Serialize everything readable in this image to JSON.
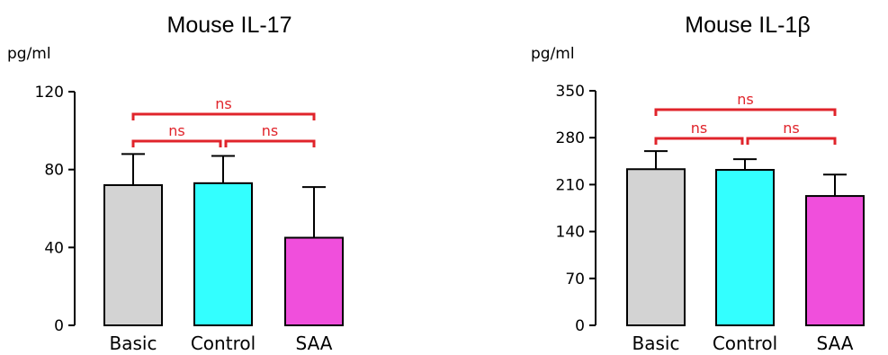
{
  "chart_data": [
    {
      "type": "bar",
      "title": "Mouse IL-17",
      "ylabel": "pg/ml",
      "xlabel": "",
      "categories": [
        "Basic",
        "Control",
        "SAA"
      ],
      "values": [
        72,
        73,
        45
      ],
      "error_upper": [
        88,
        87,
        71
      ],
      "ylim": [
        0,
        120
      ],
      "yticks": [
        "0",
        "40",
        "80",
        "120"
      ],
      "bar_colors": [
        "#d3d3d3",
        "#33ffff",
        "#f04fdc"
      ],
      "grid": false,
      "significance": [
        {
          "from": 0,
          "to": 1,
          "label": "ns",
          "level": 1
        },
        {
          "from": 1,
          "to": 2,
          "label": "ns",
          "level": 1
        },
        {
          "from": 0,
          "to": 2,
          "label": "ns",
          "level": 2
        }
      ]
    },
    {
      "type": "bar",
      "title": "Mouse IL-1β",
      "ylabel": "pg/ml",
      "xlabel": "",
      "categories": [
        "Basic",
        "Control",
        "SAA"
      ],
      "values": [
        233,
        232,
        193
      ],
      "error_upper": [
        260,
        248,
        225
      ],
      "ylim": [
        0,
        350
      ],
      "yticks": [
        "0",
        "70",
        "140",
        "210",
        "280",
        "350"
      ],
      "bar_colors": [
        "#d3d3d3",
        "#33ffff",
        "#f04fdc"
      ],
      "grid": false,
      "significance": [
        {
          "from": 0,
          "to": 1,
          "label": "ns",
          "level": 1
        },
        {
          "from": 1,
          "to": 2,
          "label": "ns",
          "level": 1
        },
        {
          "from": 0,
          "to": 2,
          "label": "ns",
          "level": 2
        }
      ]
    }
  ],
  "colors": {
    "significance": "#e0242b",
    "axis": "#000000"
  }
}
